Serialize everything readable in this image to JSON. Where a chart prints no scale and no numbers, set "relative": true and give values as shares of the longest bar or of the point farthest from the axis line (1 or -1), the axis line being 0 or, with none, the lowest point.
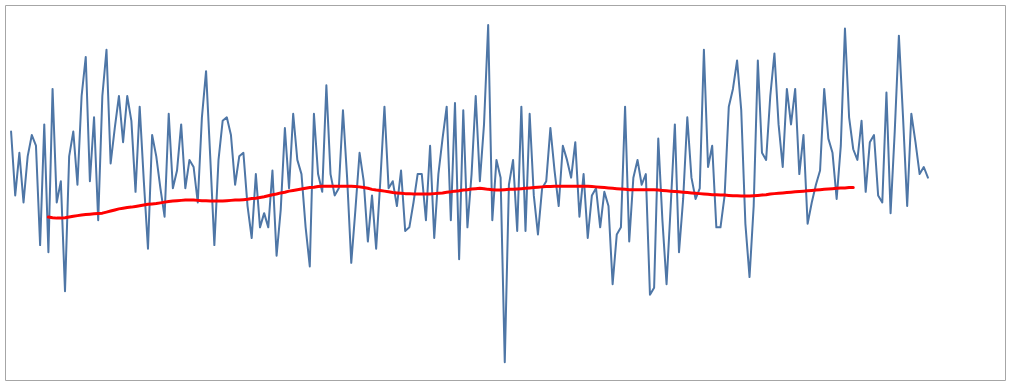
{
  "chart_data": {
    "type": "line",
    "relative": true,
    "categories": [
      null,
      null,
      null,
      null,
      null,
      null,
      null,
      null,
      null,
      null,
      null,
      null,
      null,
      null,
      null,
      null,
      null,
      null,
      null,
      null,
      null,
      null,
      null,
      null,
      null,
      null,
      null,
      null,
      null,
      null,
      null,
      null,
      null,
      null,
      null,
      null,
      null,
      null,
      null,
      null,
      null,
      null,
      null,
      null,
      null,
      null,
      null,
      null,
      null,
      null,
      null,
      null,
      null,
      null,
      null,
      null,
      null,
      null,
      null,
      null,
      null,
      null,
      null,
      null,
      null,
      null,
      null,
      null,
      null,
      null,
      null,
      null,
      null,
      null,
      null,
      null,
      null,
      null,
      null,
      null,
      null,
      null,
      null,
      null,
      null,
      null,
      null,
      null,
      null,
      null,
      null,
      null,
      null,
      null,
      null,
      null,
      null,
      null,
      null,
      null,
      null,
      null,
      null,
      null,
      null,
      null,
      null,
      null,
      null,
      null,
      null,
      null,
      null,
      null,
      null,
      null,
      null,
      null,
      null,
      null,
      null,
      null,
      null,
      null,
      null,
      null,
      null,
      null,
      null,
      null,
      null,
      null,
      null,
      null,
      null,
      null,
      null,
      null,
      null,
      null,
      null,
      null,
      null,
      null,
      null,
      null,
      null,
      null,
      null,
      null,
      null,
      null,
      null,
      null,
      null,
      null,
      null,
      null,
      null,
      null,
      null,
      null,
      null,
      null,
      null,
      null,
      null,
      null,
      null,
      null,
      null,
      null,
      null,
      null,
      null,
      null,
      null,
      null,
      null,
      null,
      null,
      null,
      null,
      null,
      null,
      null,
      null,
      null,
      null,
      null,
      null,
      null,
      null,
      null,
      null,
      null,
      null,
      null,
      null,
      null,
      null,
      null,
      null,
      null,
      null,
      null,
      null,
      null,
      null,
      null,
      null,
      null,
      null,
      null,
      null,
      null,
      null,
      null,
      null,
      null,
      null,
      null
    ],
    "series": [
      {
        "color": "#4e76a6",
        "values": [
          0.7,
          0.52,
          0.64,
          0.5,
          0.63,
          0.69,
          0.66,
          0.38,
          0.72,
          0.36,
          0.82,
          0.5,
          0.56,
          0.25,
          0.63,
          0.7,
          0.55,
          0.8,
          0.91,
          0.56,
          0.74,
          0.45,
          0.8,
          0.93,
          0.61,
          0.71,
          0.8,
          0.67,
          0.8,
          0.73,
          0.53,
          0.77,
          0.56,
          0.37,
          0.69,
          0.63,
          0.54,
          0.46,
          0.75,
          0.54,
          0.59,
          0.72,
          0.54,
          0.62,
          0.6,
          0.5,
          0.74,
          0.87,
          0.63,
          0.38,
          0.62,
          0.73,
          0.74,
          0.69,
          0.55,
          0.63,
          0.64,
          0.49,
          0.4,
          0.58,
          0.43,
          0.47,
          0.43,
          0.59,
          0.35,
          0.48,
          0.71,
          0.54,
          0.75,
          0.62,
          0.58,
          0.43,
          0.32,
          0.75,
          0.58,
          0.53,
          0.83,
          0.58,
          0.52,
          0.54,
          0.76,
          0.57,
          0.33,
          0.48,
          0.64,
          0.56,
          0.39,
          0.52,
          0.37,
          0.56,
          0.77,
          0.54,
          0.56,
          0.49,
          0.59,
          0.42,
          0.43,
          0.5,
          0.58,
          0.58,
          0.45,
          0.66,
          0.4,
          0.58,
          0.68,
          0.77,
          0.45,
          0.78,
          0.34,
          0.76,
          0.43,
          0.58,
          0.8,
          0.56,
          0.72,
          1.0,
          0.45,
          0.62,
          0.57,
          0.05,
          0.55,
          0.62,
          0.42,
          0.77,
          0.42,
          0.75,
          0.52,
          0.41,
          0.54,
          0.56,
          0.71,
          0.59,
          0.49,
          0.66,
          0.62,
          0.57,
          0.67,
          0.46,
          0.58,
          0.4,
          0.52,
          0.54,
          0.43,
          0.53,
          0.49,
          0.27,
          0.41,
          0.43,
          0.77,
          0.39,
          0.57,
          0.62,
          0.55,
          0.58,
          0.24,
          0.26,
          0.68,
          0.45,
          0.27,
          0.49,
          0.72,
          0.36,
          0.51,
          0.74,
          0.57,
          0.51,
          0.54,
          0.93,
          0.6,
          0.66,
          0.43,
          0.43,
          0.52,
          0.77,
          0.82,
          0.9,
          0.76,
          0.44,
          0.29,
          0.49,
          0.9,
          0.64,
          0.62,
          0.8,
          0.92,
          0.72,
          0.6,
          0.82,
          0.72,
          0.82,
          0.58,
          0.69,
          0.44,
          0.5,
          0.55,
          0.59,
          0.82,
          0.68,
          0.64,
          0.51,
          0.66,
          0.99,
          0.74,
          0.65,
          0.62,
          0.73,
          0.53,
          0.67,
          0.69,
          0.52,
          0.5,
          0.81,
          0.47,
          0.7,
          0.97,
          0.74,
          0.49,
          0.75,
          0.67,
          0.58,
          0.6,
          0.57
        ]
      },
      {
        "color": "#ff0000",
        "values": [
          null,
          null,
          null,
          null,
          null,
          null,
          null,
          null,
          null,
          0.459,
          0.457,
          0.456,
          0.456,
          0.457,
          0.459,
          0.461,
          0.463,
          0.465,
          0.466,
          0.467,
          0.468,
          0.469,
          0.47,
          0.473,
          0.476,
          0.479,
          0.482,
          0.484,
          0.486,
          0.487,
          0.489,
          0.491,
          0.493,
          0.495,
          0.496,
          0.497,
          0.499,
          0.501,
          0.503,
          0.504,
          0.505,
          0.506,
          0.507,
          0.507,
          0.507,
          0.506,
          0.505,
          0.505,
          0.504,
          0.504,
          0.504,
          0.504,
          0.505,
          0.506,
          0.507,
          0.507,
          0.508,
          0.509,
          0.511,
          0.512,
          0.514,
          0.516,
          0.519,
          0.522,
          0.524,
          0.527,
          0.529,
          0.532,
          0.534,
          0.536,
          0.538,
          0.54,
          0.542,
          0.543,
          0.545,
          0.546,
          0.546,
          0.546,
          0.546,
          0.546,
          0.546,
          0.546,
          0.546,
          0.545,
          0.544,
          0.542,
          0.54,
          0.537,
          0.535,
          0.534,
          0.532,
          0.53,
          0.528,
          0.527,
          0.526,
          0.525,
          0.525,
          0.524,
          0.524,
          0.524,
          0.524,
          0.524,
          0.525,
          0.526,
          0.527,
          0.529,
          0.53,
          0.532,
          0.533,
          0.535,
          0.536,
          0.538,
          0.539,
          0.54,
          0.539,
          0.537,
          0.536,
          0.535,
          0.535,
          0.536,
          0.537,
          0.537,
          0.538,
          0.539,
          0.54,
          0.541,
          0.542,
          0.543,
          0.544,
          0.545,
          0.545,
          0.546,
          0.546,
          0.546,
          0.546,
          0.546,
          0.546,
          0.546,
          0.546,
          0.546,
          0.545,
          0.544,
          0.543,
          0.542,
          0.541,
          0.54,
          0.539,
          0.538,
          0.537,
          0.536,
          0.536,
          0.536,
          0.536,
          0.536,
          0.536,
          0.536,
          0.535,
          0.534,
          0.533,
          0.532,
          0.531,
          0.53,
          0.529,
          0.528,
          0.527,
          0.526,
          0.525,
          0.524,
          0.523,
          0.522,
          0.522,
          0.521,
          0.521,
          0.52,
          0.519,
          0.519,
          0.518,
          0.518,
          0.518,
          0.519,
          0.52,
          0.521,
          0.522,
          0.524,
          0.525,
          0.526,
          0.527,
          0.528,
          0.529,
          0.53,
          0.531,
          0.532,
          0.533,
          0.534,
          0.535,
          0.536,
          0.537,
          0.538,
          0.539,
          0.54,
          0.541,
          0.541,
          0.542,
          0.542,
          null,
          null,
          null,
          null,
          null,
          null,
          null,
          null,
          null,
          null,
          null,
          null,
          null,
          null,
          null,
          null,
          null,
          null
        ]
      }
    ]
  }
}
